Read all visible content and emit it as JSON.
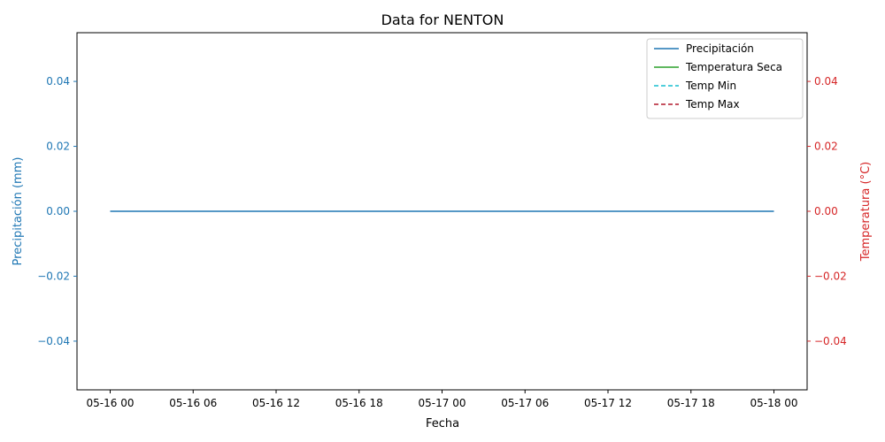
{
  "colors": {
    "left_axis": "#1f77b4",
    "right_axis": "#d62728",
    "text": "#000000"
  },
  "chart_data": {
    "type": "line",
    "title": "Data for NENTON",
    "xlabel": "Fecha",
    "ylabel_left": "Precipitación (mm)",
    "ylabel_right": "Temperatura (°C)",
    "x_ticks": [
      "05-16 00",
      "05-16 06",
      "05-16 12",
      "05-16 18",
      "05-17 00",
      "05-17 06",
      "05-17 12",
      "05-17 18",
      "05-18 00"
    ],
    "x_range": [
      "05-16 00",
      "05-18 00"
    ],
    "ylim_left": [
      -0.055,
      0.055
    ],
    "ylim_right": [
      -0.055,
      0.055
    ],
    "y_ticks_left": [
      "−0.04",
      "−0.02",
      "0.00",
      "0.02",
      "0.04"
    ],
    "y_ticks_right": [
      "−0.04",
      "−0.02",
      "0.00",
      "0.02",
      "0.04"
    ],
    "y_tick_values": [
      -0.04,
      -0.02,
      0.0,
      0.02,
      0.04
    ],
    "legend_position": "top-right",
    "grid": false,
    "series": [
      {
        "name": "Precipitación",
        "axis": "left",
        "color": "#1f77b4",
        "dash": "solid",
        "x": [
          "05-16 00",
          "05-18 00"
        ],
        "y": [
          0,
          0
        ]
      },
      {
        "name": "Temperatura Seca",
        "axis": "right",
        "color": "#2ca02c",
        "dash": "solid",
        "x": [],
        "y": []
      },
      {
        "name": "Temp Min",
        "axis": "right",
        "color": "#17becf",
        "dash": "dashed",
        "x": [],
        "y": []
      },
      {
        "name": "Temp Max",
        "axis": "right",
        "color": "#b2182b",
        "dash": "dashed",
        "x": [],
        "y": []
      }
    ]
  }
}
